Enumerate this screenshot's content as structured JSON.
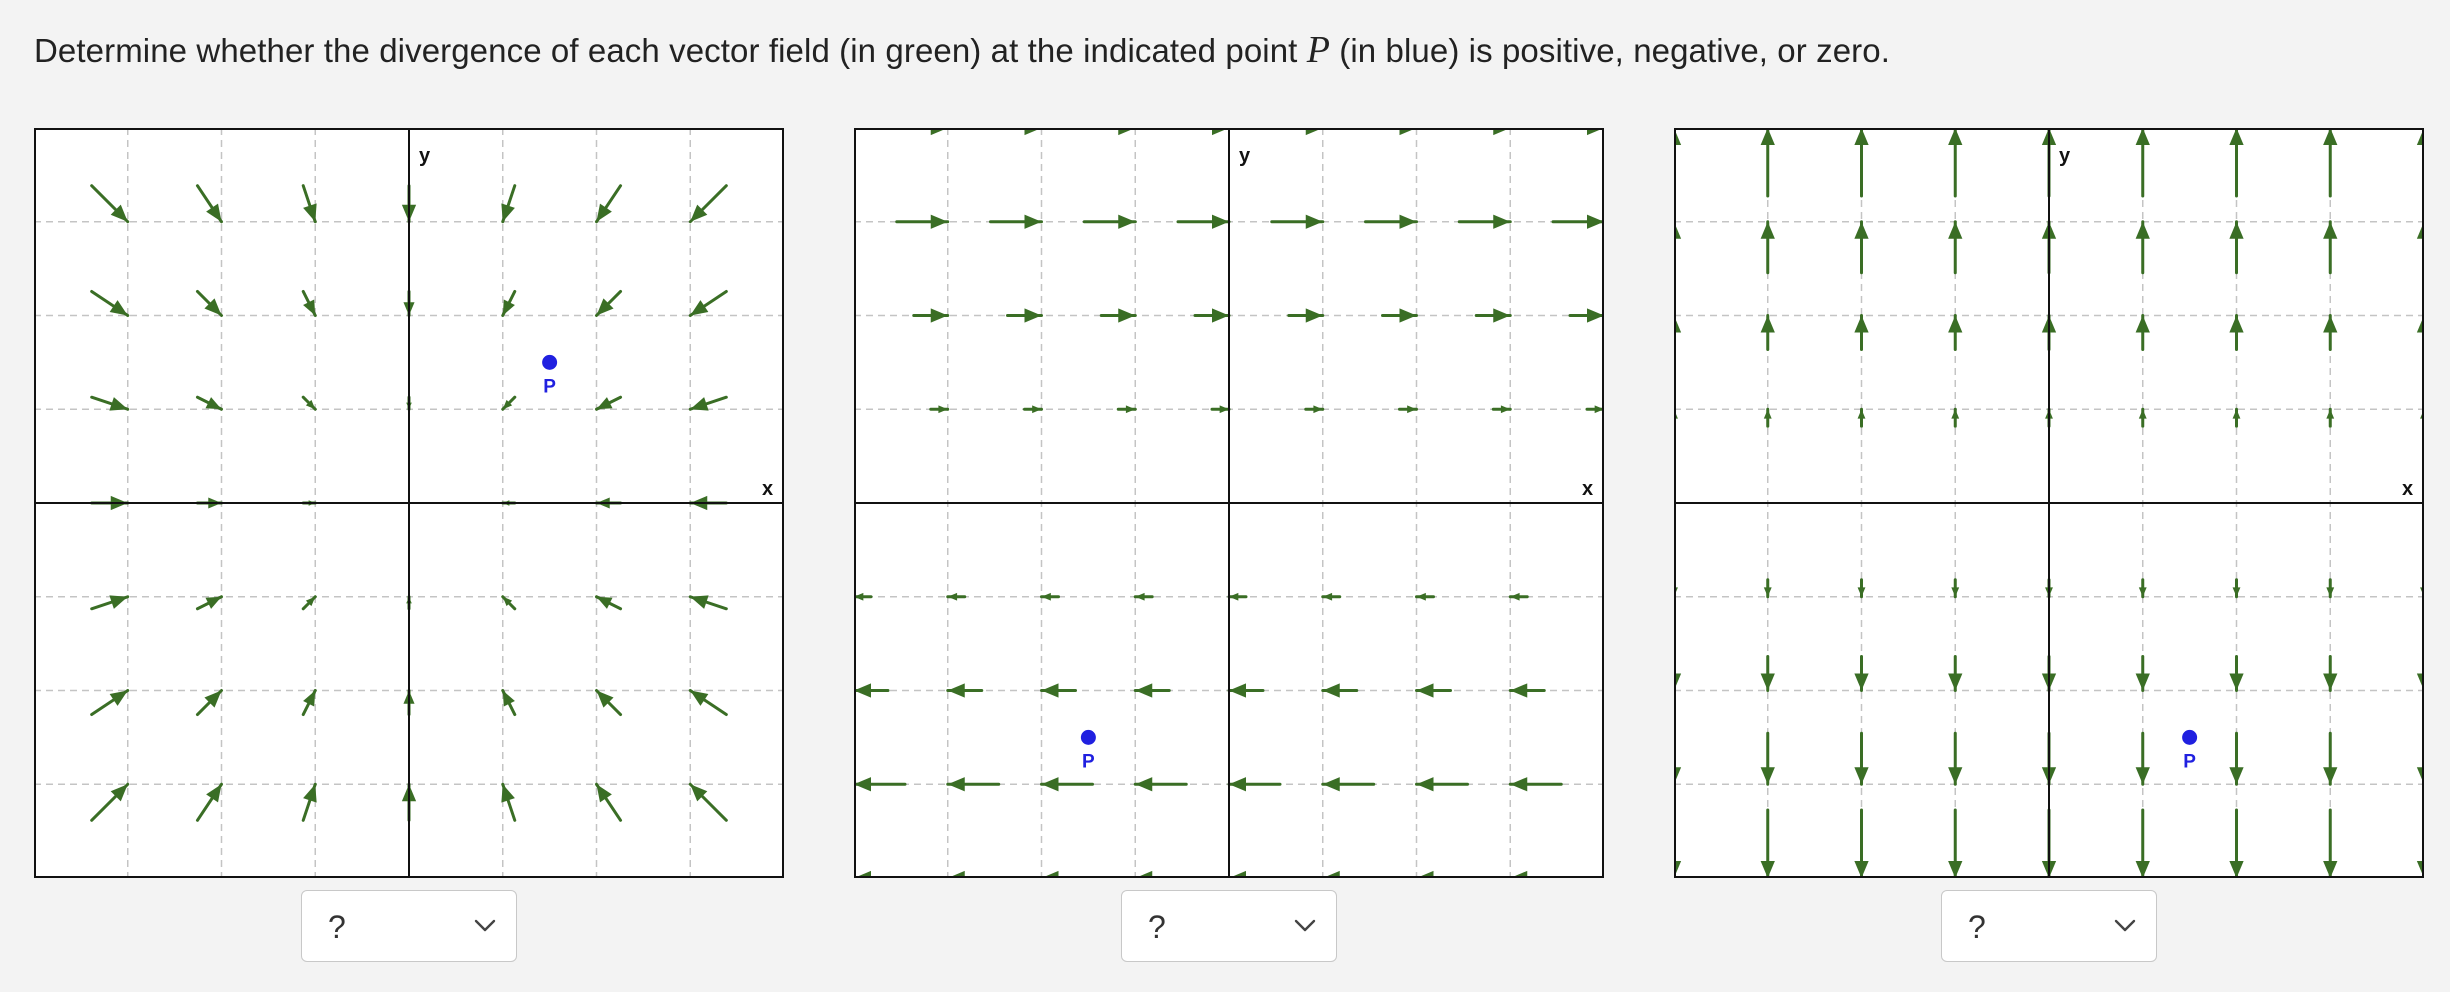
{
  "question": {
    "text_before": "Determine whether the divergence of each vector field (in green) at the indicated point ",
    "variable": "P",
    "text_after": " (in blue) is positive, negative, or zero."
  },
  "colors": {
    "arrow": "#3a6e25",
    "point": "#2020e0",
    "grid": "#c4c4c4",
    "axis": "#111111",
    "page_bg": "#f3f3f3"
  },
  "graphs": [
    {
      "id": "graph-1",
      "field": "(-x, -y)",
      "domain": [
        -4,
        4
      ],
      "axis_x_label": "x",
      "axis_y_label": "y",
      "point": {
        "label": "P",
        "x": 1.5,
        "y": 1.5
      },
      "answer": {
        "selected": "?",
        "options": [
          "?",
          "positive",
          "negative",
          "zero"
        ]
      }
    },
    {
      "id": "graph-2",
      "field": "(y, 0)",
      "domain": [
        -4,
        4
      ],
      "axis_x_label": "x",
      "axis_y_label": "y",
      "point": {
        "label": "P",
        "x": -1.5,
        "y": -2.5
      },
      "answer": {
        "selected": "?",
        "options": [
          "?",
          "positive",
          "negative",
          "zero"
        ]
      }
    },
    {
      "id": "graph-3",
      "field": "(0, y)",
      "domain": [
        -4,
        4
      ],
      "axis_x_label": "x",
      "axis_y_label": "y",
      "point": {
        "label": "P",
        "x": 1.5,
        "y": -2.5
      },
      "answer": {
        "selected": "?",
        "options": [
          "?",
          "positive",
          "negative",
          "zero"
        ]
      }
    }
  ]
}
